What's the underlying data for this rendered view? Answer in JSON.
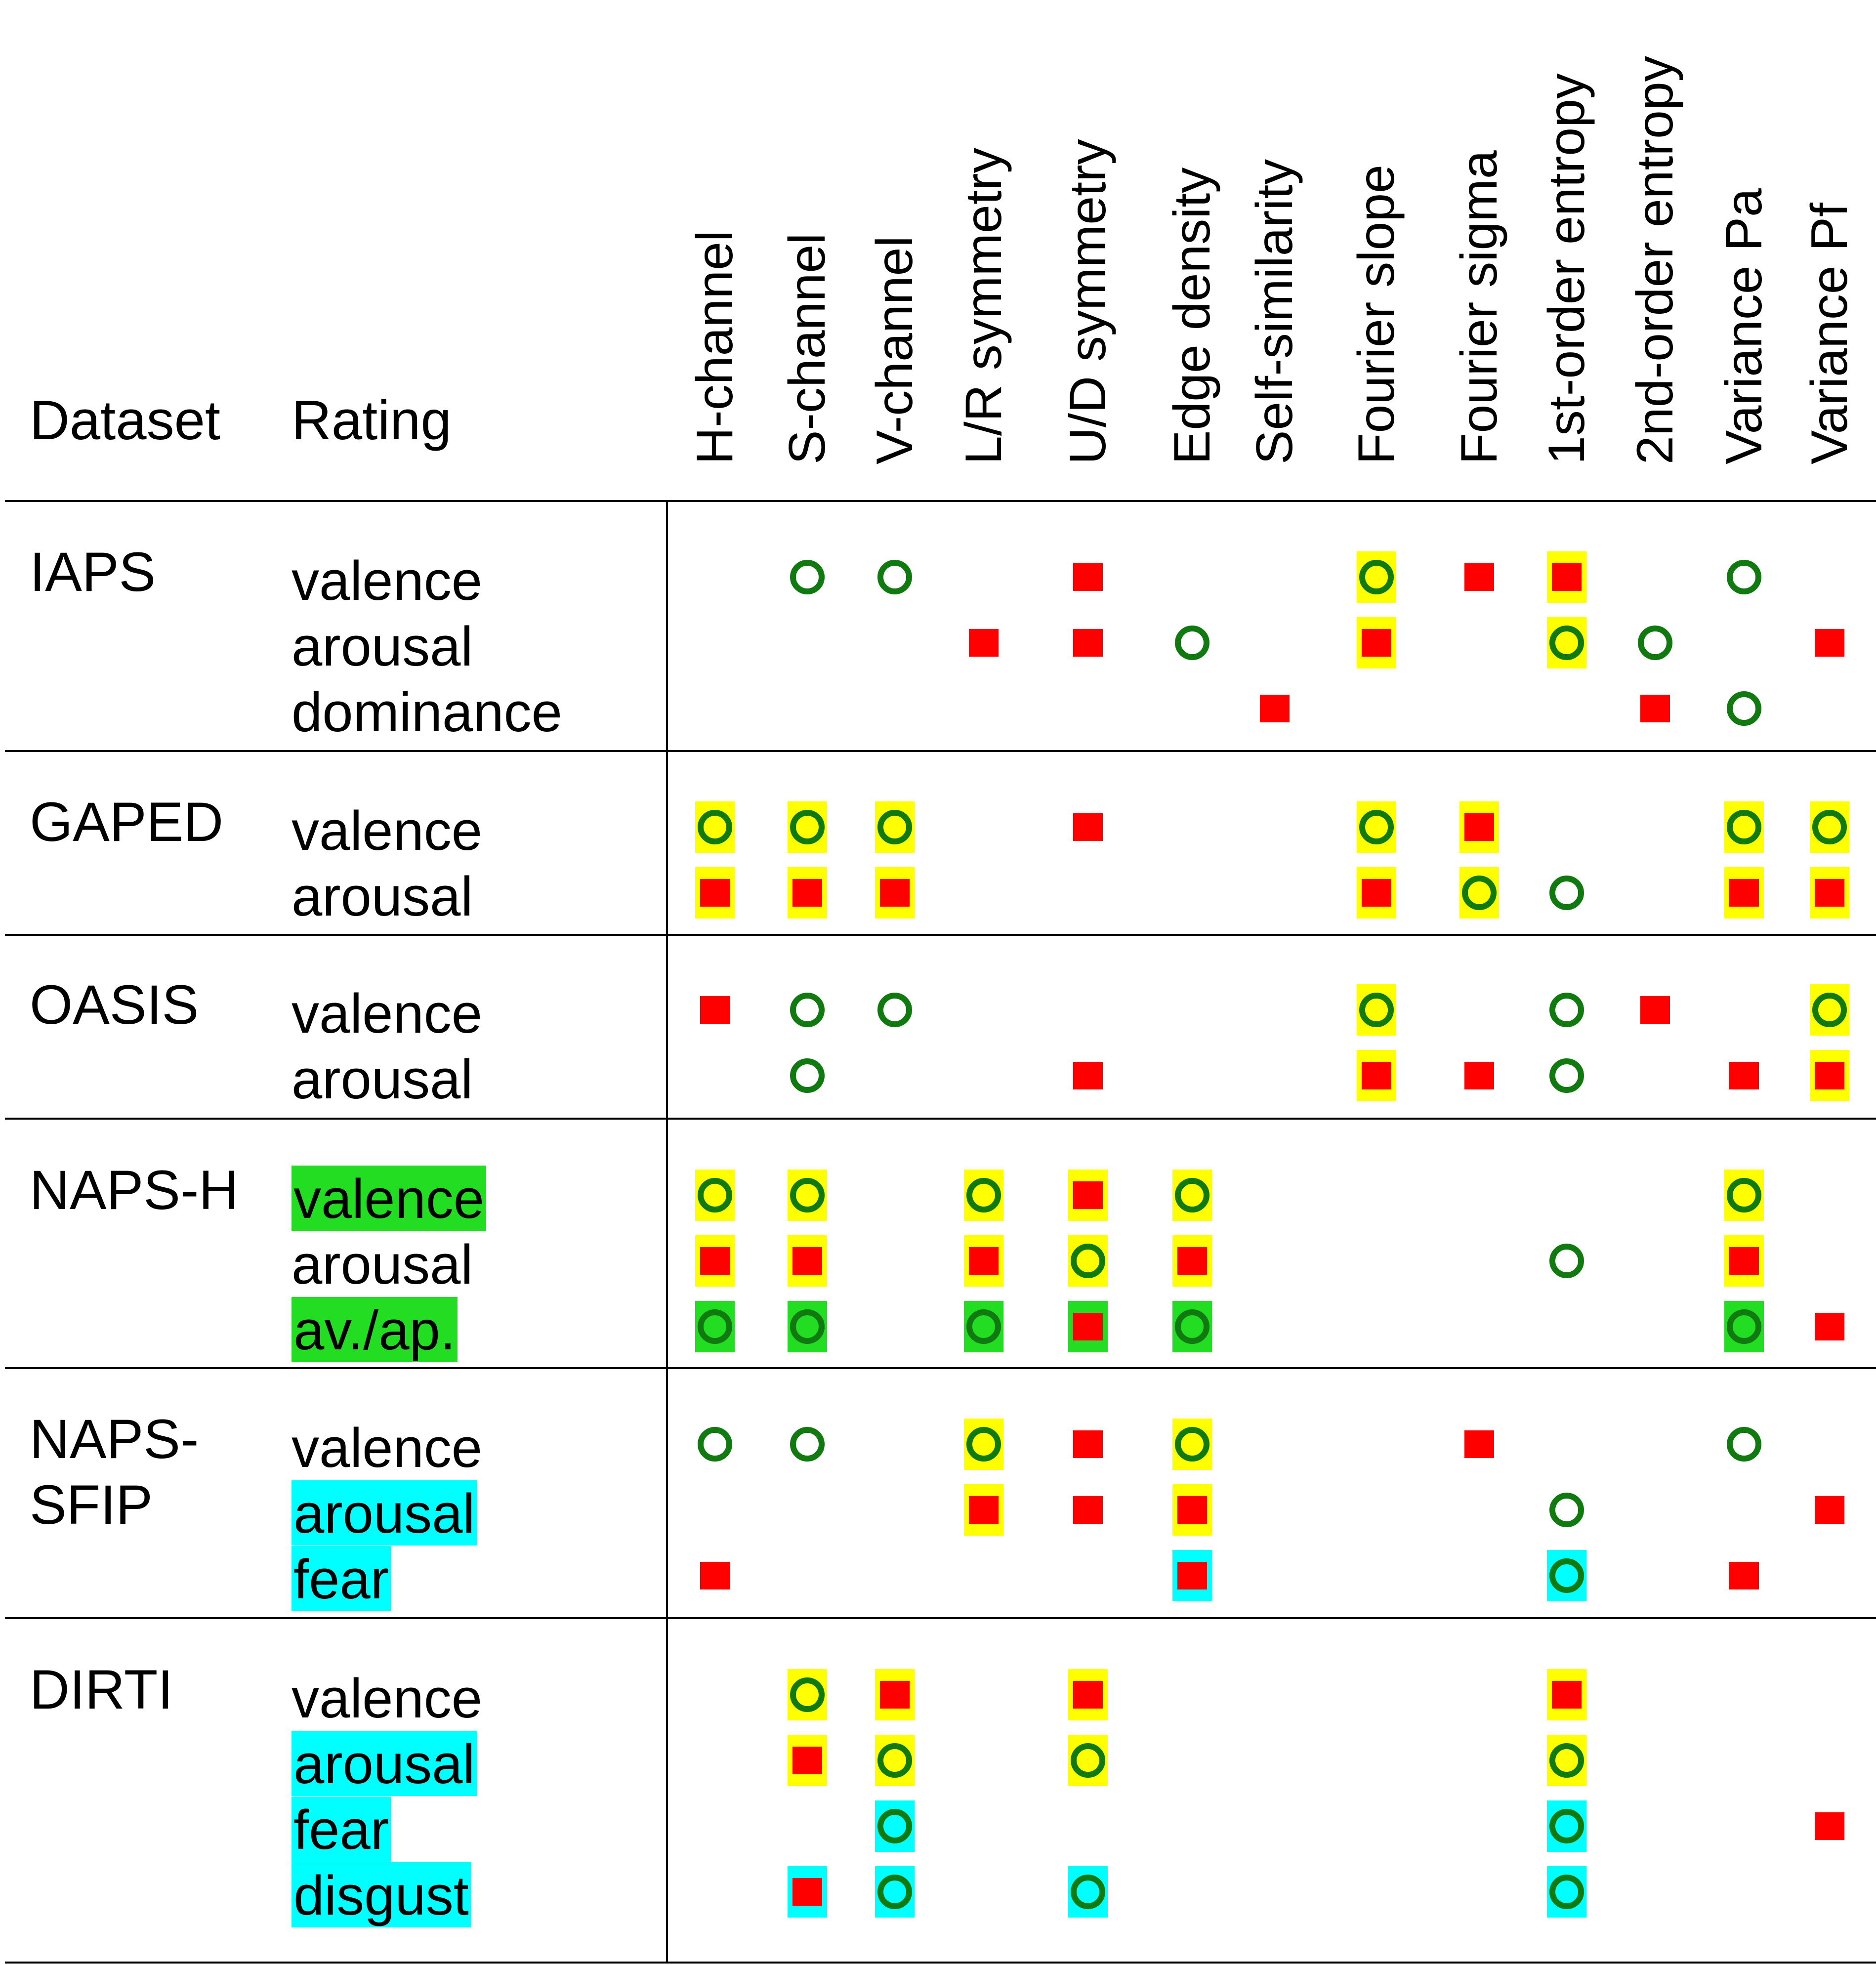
{
  "header": {
    "dataset": "Dataset",
    "rating": "Rating"
  },
  "columns": [
    "H-channel",
    "S-channel",
    "V-channel",
    "L/R symmetry",
    "U/D symmetry",
    "Edge density",
    "Self-similarity",
    "Fourier slope",
    "Fourier sigma",
    "1st-order entropy",
    "2nd-order entropy",
    "Variance Pa",
    "Variance Pf"
  ],
  "colors": {
    "positive": "#107a10",
    "negative": "#ff0000",
    "yellow": "#ffff00",
    "green": "#22dd22",
    "cyan": "#00ffff",
    "line": "#000000"
  },
  "legend_codes": {
    "o": "circle (positive)",
    "s": "square (negative)",
    "y": "yellow",
    "g": "green",
    "c": "cyan"
  },
  "groups": [
    {
      "dataset": [
        "IAPS"
      ],
      "rows": [
        {
          "rating": "valence",
          "hl": null,
          "cells": [
            null,
            "o",
            "o",
            null,
            "s",
            null,
            null,
            "oy",
            "s",
            "sy",
            null,
            "o",
            null
          ]
        },
        {
          "rating": "arousal",
          "hl": null,
          "cells": [
            null,
            null,
            null,
            "s",
            "s",
            "o",
            null,
            "sy",
            null,
            "oy",
            "o",
            null,
            "s"
          ]
        },
        {
          "rating": "dominance",
          "hl": null,
          "cells": [
            null,
            null,
            null,
            null,
            null,
            null,
            "s",
            null,
            null,
            null,
            "s",
            "o",
            null
          ]
        }
      ]
    },
    {
      "dataset": [
        "GAPED"
      ],
      "rows": [
        {
          "rating": "valence",
          "hl": null,
          "cells": [
            "oy",
            "oy",
            "oy",
            null,
            "s",
            null,
            null,
            "oy",
            "sy",
            null,
            null,
            "oy",
            "oy"
          ]
        },
        {
          "rating": "arousal",
          "hl": null,
          "cells": [
            "sy",
            "sy",
            "sy",
            null,
            null,
            null,
            null,
            "sy",
            "oy",
            "o",
            null,
            "sy",
            "sy"
          ]
        }
      ]
    },
    {
      "dataset": [
        "OASIS"
      ],
      "rows": [
        {
          "rating": "valence",
          "hl": null,
          "cells": [
            "s",
            "o",
            "o",
            null,
            null,
            null,
            null,
            "oy",
            null,
            "o",
            "s",
            null,
            "oy"
          ]
        },
        {
          "rating": "arousal",
          "hl": null,
          "cells": [
            null,
            "o",
            null,
            null,
            "s",
            null,
            null,
            "sy",
            "s",
            "o",
            null,
            "s",
            "sy"
          ]
        }
      ]
    },
    {
      "dataset": [
        "NAPS-H"
      ],
      "rows": [
        {
          "rating": "valence",
          "hl": "g",
          "cells": [
            "oy",
            "oy",
            null,
            "oy",
            "sy",
            "oy",
            null,
            null,
            null,
            null,
            null,
            "oy",
            null
          ]
        },
        {
          "rating": "arousal",
          "hl": null,
          "cells": [
            "sy",
            "sy",
            null,
            "sy",
            "oy",
            "sy",
            null,
            null,
            null,
            "o",
            null,
            "sy",
            null
          ]
        },
        {
          "rating": "av./ap.",
          "hl": "g",
          "cells": [
            "og",
            "og",
            null,
            "og",
            "sg",
            "og",
            null,
            null,
            null,
            null,
            null,
            "og",
            "s"
          ]
        }
      ]
    },
    {
      "dataset": [
        "NAPS-",
        "SFIP"
      ],
      "rows": [
        {
          "rating": "valence",
          "hl": null,
          "cells": [
            "o",
            "o",
            null,
            "oy",
            "s",
            "oy",
            null,
            null,
            "s",
            null,
            null,
            "o",
            null
          ]
        },
        {
          "rating": "arousal",
          "hl": "c",
          "cells": [
            null,
            null,
            null,
            "sy",
            "s",
            "sy",
            null,
            null,
            null,
            "o",
            null,
            null,
            "s"
          ]
        },
        {
          "rating": "fear",
          "hl": "c",
          "cells": [
            "s",
            null,
            null,
            null,
            null,
            "sc",
            null,
            null,
            null,
            "oc",
            null,
            "s",
            null
          ]
        }
      ]
    },
    {
      "dataset": [
        "DIRTI"
      ],
      "rows": [
        {
          "rating": "valence",
          "hl": null,
          "cells": [
            null,
            "oy",
            "sy",
            null,
            "sy",
            null,
            null,
            null,
            null,
            "sy",
            null,
            null,
            null
          ]
        },
        {
          "rating": "arousal",
          "hl": "c",
          "cells": [
            null,
            "sy",
            "oy",
            null,
            "oy",
            null,
            null,
            null,
            null,
            "oy",
            null,
            null,
            null
          ]
        },
        {
          "rating": "fear",
          "hl": "c",
          "cells": [
            null,
            null,
            "oc",
            null,
            null,
            null,
            null,
            null,
            null,
            "oc",
            null,
            null,
            "s"
          ]
        },
        {
          "rating": "disgust",
          "hl": "c",
          "cells": [
            null,
            "sc",
            "oc",
            null,
            "oc",
            null,
            null,
            null,
            null,
            "oc",
            null,
            null,
            null
          ]
        }
      ]
    }
  ]
}
